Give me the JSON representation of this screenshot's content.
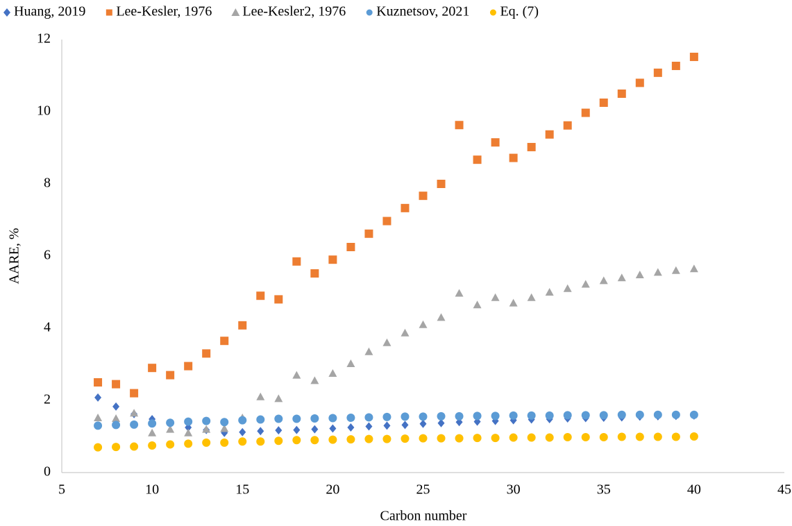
{
  "chart_data": {
    "type": "scatter",
    "x_label": "Carbon number",
    "y_label": "AARE, %",
    "x": [
      7,
      8,
      9,
      10,
      11,
      12,
      13,
      14,
      15,
      16,
      17,
      18,
      19,
      20,
      21,
      22,
      23,
      24,
      25,
      26,
      27,
      28,
      29,
      30,
      31,
      32,
      33,
      34,
      35,
      36,
      37,
      38,
      39,
      40
    ],
    "xlim": [
      5,
      45
    ],
    "xticks": [
      5,
      10,
      15,
      20,
      25,
      30,
      35,
      40,
      45
    ],
    "ylim": [
      0,
      12
    ],
    "yticks": [
      0,
      2,
      4,
      6,
      8,
      10,
      12
    ],
    "grid": false,
    "legend": "top",
    "series": [
      {
        "name": "Huang, 2019",
        "color": "#4472c4",
        "marker": "diamond",
        "values": [
          2.08,
          1.83,
          1.62,
          1.48,
          1.35,
          1.25,
          1.18,
          1.1,
          1.12,
          1.15,
          1.17,
          1.18,
          1.2,
          1.22,
          1.25,
          1.28,
          1.3,
          1.32,
          1.35,
          1.37,
          1.4,
          1.41,
          1.43,
          1.45,
          1.47,
          1.48,
          1.5,
          1.51,
          1.52,
          1.53,
          1.55,
          1.56,
          1.57,
          1.58
        ]
      },
      {
        "name": "Lee-Kesler, 1976",
        "color": "#ed7d31",
        "marker": "square",
        "values": [
          2.5,
          2.45,
          2.2,
          2.9,
          2.7,
          2.95,
          3.3,
          3.65,
          4.08,
          4.9,
          4.8,
          5.85,
          5.52,
          5.9,
          6.25,
          6.62,
          6.97,
          7.33,
          7.67,
          8.0,
          9.63,
          8.67,
          9.15,
          8.72,
          9.02,
          9.37,
          9.62,
          9.97,
          10.25,
          10.5,
          10.8,
          11.08,
          11.27,
          11.52
        ]
      },
      {
        "name": "Lee-Kesler2, 1976",
        "color": "#a5a5a5",
        "marker": "triangle",
        "values": [
          1.52,
          1.5,
          1.65,
          1.1,
          1.2,
          1.1,
          1.2,
          1.22,
          1.52,
          2.1,
          2.05,
          2.7,
          2.55,
          2.75,
          3.02,
          3.35,
          3.6,
          3.87,
          4.1,
          4.3,
          4.97,
          4.65,
          4.85,
          4.7,
          4.85,
          5.0,
          5.1,
          5.22,
          5.32,
          5.4,
          5.48,
          5.55,
          5.6,
          5.65
        ]
      },
      {
        "name": "Kuznetsov, 2021",
        "color": "#5b9bd5",
        "marker": "circle",
        "values": [
          1.3,
          1.32,
          1.33,
          1.36,
          1.38,
          1.41,
          1.43,
          1.4,
          1.45,
          1.47,
          1.49,
          1.49,
          1.5,
          1.51,
          1.52,
          1.53,
          1.54,
          1.55,
          1.55,
          1.56,
          1.56,
          1.57,
          1.57,
          1.58,
          1.58,
          1.58,
          1.59,
          1.59,
          1.59,
          1.6,
          1.6,
          1.6,
          1.6,
          1.6
        ]
      },
      {
        "name": "Eq. (7)",
        "color": "#ffc000",
        "marker": "circle",
        "values": [
          0.7,
          0.71,
          0.72,
          0.75,
          0.78,
          0.8,
          0.83,
          0.83,
          0.86,
          0.86,
          0.88,
          0.9,
          0.9,
          0.91,
          0.92,
          0.93,
          0.93,
          0.94,
          0.95,
          0.95,
          0.95,
          0.96,
          0.96,
          0.97,
          0.97,
          0.97,
          0.98,
          0.98,
          0.98,
          0.99,
          0.99,
          0.99,
          0.99,
          1.0
        ]
      }
    ]
  }
}
